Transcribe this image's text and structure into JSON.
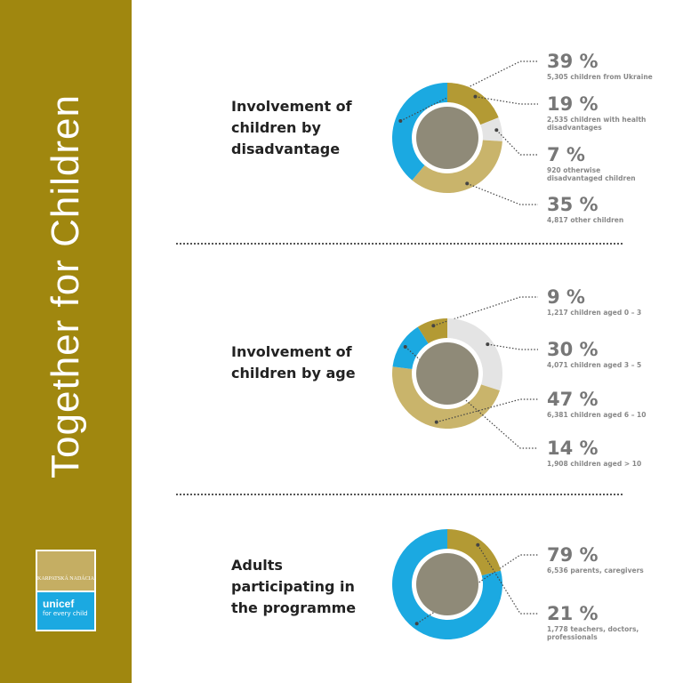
{
  "title": "Together for Children",
  "logos": {
    "foundation": "KARPATSKÁ NADÁCIA",
    "unicef": "unicef",
    "tagline": "for every child"
  },
  "chart_data": [
    {
      "type": "pie",
      "title": "Involvement of children by disadvantage",
      "categories": [
        "5,305 children from Ukraine",
        "2,535 children with health disadvantages",
        "920 otherwise disadvantaged children",
        "4,817 other children"
      ],
      "values": [
        39,
        19,
        7,
        35
      ],
      "value_labels": [
        "39 %",
        "19 %",
        "7 %",
        "35 %"
      ],
      "colors": [
        "#1ba9e1",
        "#b39a34",
        "#e4e4e4",
        "#c9b46b"
      ]
    },
    {
      "type": "pie",
      "title": "Involvement of children by age",
      "categories": [
        "1,217 children aged 0 – 3",
        "4,071 children aged 3 – 5",
        "6,381 children aged 6 – 10",
        "1,908 children aged > 10"
      ],
      "values": [
        9,
        30,
        47,
        14
      ],
      "value_labels": [
        "9 %",
        "30 %",
        "47 %",
        "14 %"
      ],
      "colors": [
        "#b39a34",
        "#e4e4e4",
        "#c9b46b",
        "#1ba9e1"
      ]
    },
    {
      "type": "pie",
      "title": "Adults participating in the programme",
      "categories": [
        "6,536 parents, caregivers",
        "1,778 teachers, doctors, professionals"
      ],
      "values": [
        79,
        21
      ],
      "value_labels": [
        "79 %",
        "21 %"
      ],
      "colors": [
        "#1ba9e1",
        "#b39a34"
      ]
    }
  ]
}
